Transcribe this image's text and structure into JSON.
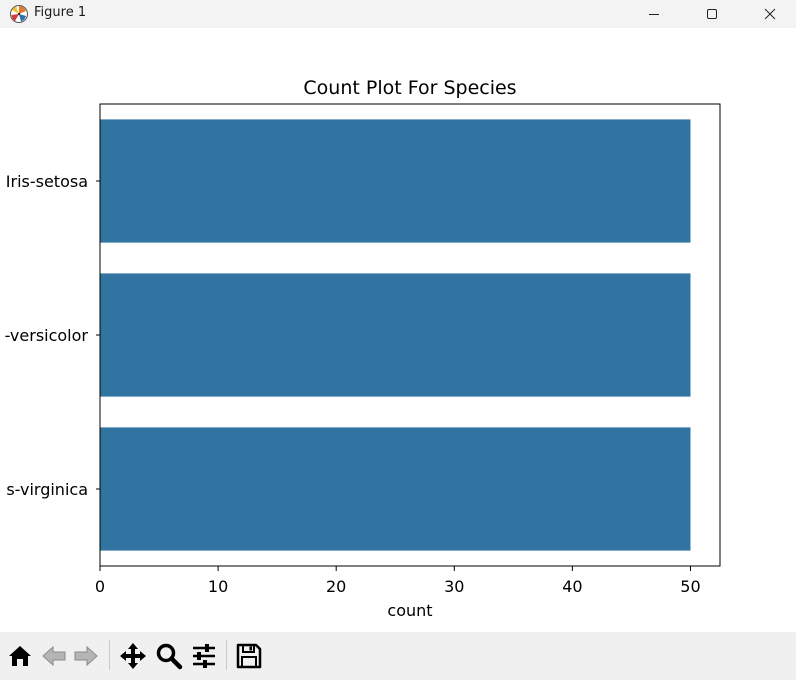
{
  "window": {
    "title": "Figure 1",
    "icon": "matplotlib-logo-icon",
    "controls": [
      "minimize-icon",
      "maximize-icon",
      "close-icon"
    ]
  },
  "chart_data": {
    "type": "bar",
    "orientation": "horizontal",
    "title": "Count Plot For Species",
    "xlabel": "count",
    "ylabel": "",
    "categories": [
      "Iris-setosa",
      "Iris-versicolor",
      "Iris-virginica"
    ],
    "category_labels_visible": [
      "Iris-setosa",
      "-versicolor",
      "s-virginica"
    ],
    "values": [
      50,
      50,
      50
    ],
    "xlim": [
      0,
      52.5
    ],
    "xticks": [
      0,
      10,
      20,
      30,
      40,
      50
    ],
    "grid": false,
    "bar_color": "#3274a1"
  },
  "toolbar": {
    "tools": [
      {
        "icon": "home-icon",
        "tooltip": "Reset original view"
      },
      {
        "icon": "back-arrow-icon",
        "tooltip": "Back"
      },
      {
        "icon": "forward-arrow-icon",
        "tooltip": "Forward"
      },
      {
        "icon": "pan-icon",
        "tooltip": "Pan"
      },
      {
        "icon": "zoom-icon",
        "tooltip": "Zoom"
      },
      {
        "icon": "configure-subplots-icon",
        "tooltip": "Configure subplots"
      },
      {
        "icon": "save-icon",
        "tooltip": "Save the figure"
      }
    ]
  }
}
